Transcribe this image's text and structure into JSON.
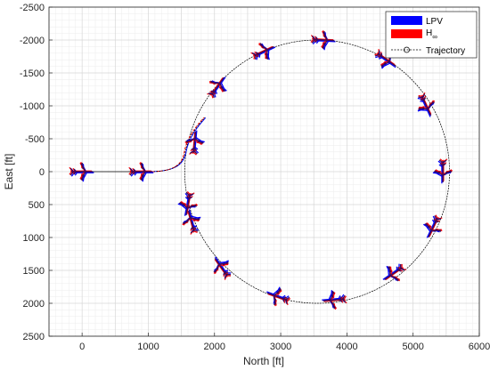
{
  "chart_data": {
    "type": "line",
    "title": "",
    "xlabel": "North [ft]",
    "ylabel": "East [ft]",
    "xlim": [
      -500,
      6000
    ],
    "ylim": [
      -2500,
      2500
    ],
    "y_reversed": true,
    "grid": true,
    "minor_grid": true,
    "x_ticks": [
      "0",
      "1000",
      "2000",
      "3000",
      "4000",
      "5000",
      "6000"
    ],
    "y_ticks": [
      "-2500",
      "-2000",
      "-1500",
      "-1000",
      "-500",
      "0",
      "500",
      "1000",
      "1500",
      "2000",
      "2500"
    ],
    "legend_position": "top-right",
    "series": [
      {
        "name": "LPV",
        "color": "#0000ff"
      },
      {
        "name": "H∞",
        "color": "#ff0000"
      },
      {
        "name": "Trajectory",
        "color": "#000000"
      }
    ],
    "trajectory": {
      "straight_segment": {
        "x": [
          -150,
          1000
        ],
        "y": [
          0,
          0
        ]
      },
      "circle": {
        "center_north": 3550,
        "center_east": 0,
        "radius": 2000
      }
    },
    "aircraft_positions": [
      {
        "north": 0,
        "east": 0,
        "heading_deg": 0
      },
      {
        "north": 900,
        "east": 0,
        "heading_deg": 0
      },
      {
        "north": 1600,
        "east": 500,
        "heading_deg": 100
      },
      {
        "north": 1700,
        "east": -450,
        "heading_deg": -85
      },
      {
        "north": 2050,
        "east": -1300,
        "heading_deg": -55
      },
      {
        "north": 2750,
        "east": -1830,
        "heading_deg": -25
      },
      {
        "north": 3650,
        "east": -2000,
        "heading_deg": 3
      },
      {
        "north": 4600,
        "east": -1700,
        "heading_deg": 35
      },
      {
        "north": 5200,
        "east": -1000,
        "heading_deg": 65
      },
      {
        "north": 5450,
        "east": 0,
        "heading_deg": 90
      },
      {
        "north": 5300,
        "east": 850,
        "heading_deg": 115
      },
      {
        "north": 4700,
        "east": 1550,
        "heading_deg": 145
      },
      {
        "north": 3800,
        "east": 1950,
        "heading_deg": 175
      },
      {
        "north": 2950,
        "east": 1900,
        "heading_deg": 200
      },
      {
        "north": 2100,
        "east": 1450,
        "heading_deg": 235
      },
      {
        "north": 1650,
        "east": 750,
        "heading_deg": 255
      }
    ]
  },
  "legend_labels": {
    "lpv": "LPV",
    "hinf": "H",
    "hinf_sub": "∞",
    "trajectory": "Trajectory"
  }
}
